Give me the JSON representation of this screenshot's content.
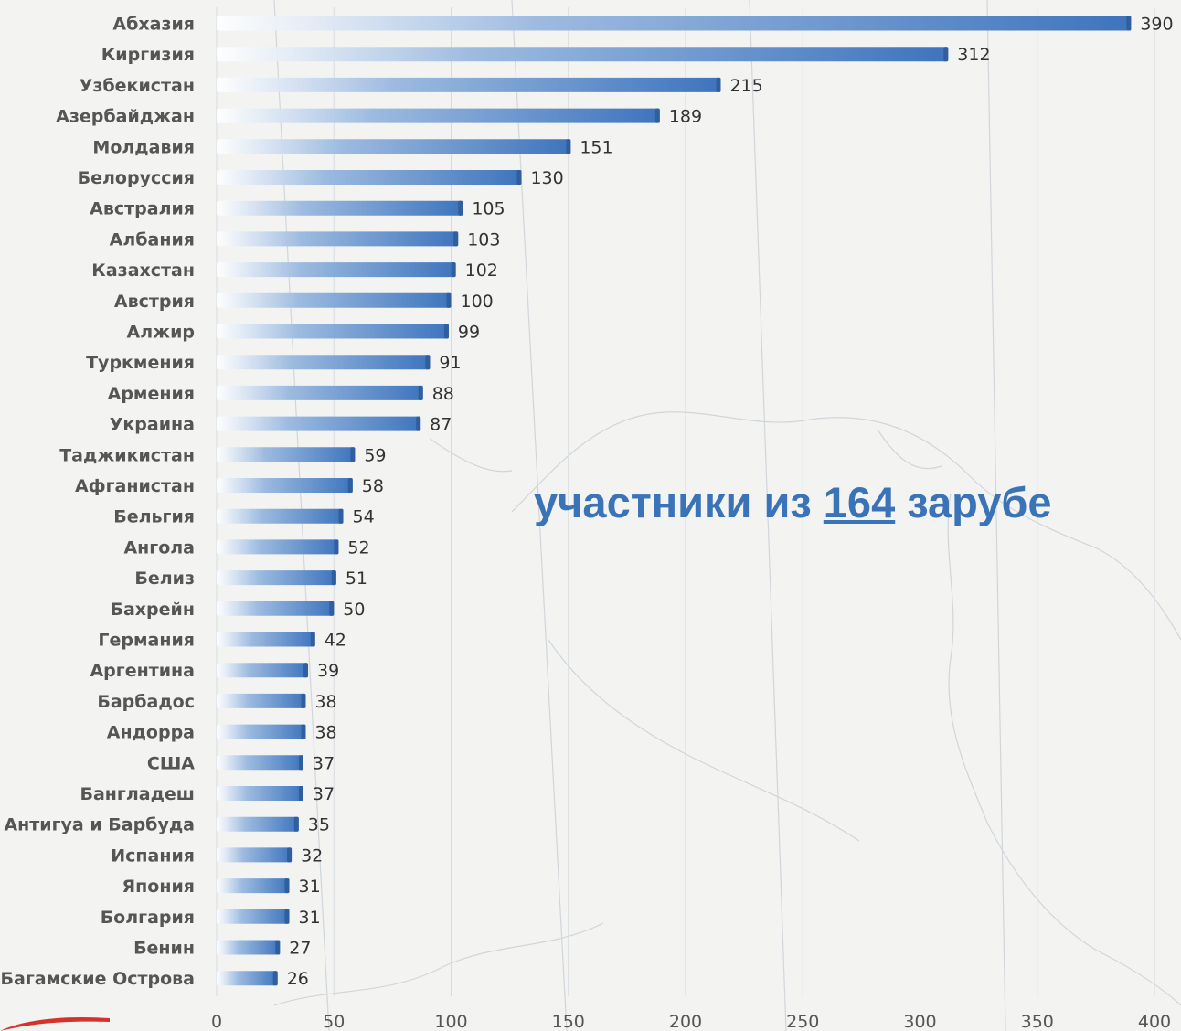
{
  "colors": {
    "bar": "#3e74bd",
    "bar_light": "#ffffff",
    "overlay_text": "#3a73b8",
    "accent_red": "#d6322b"
  },
  "overlay": {
    "prefix": "участники из ",
    "number": "164",
    "suffix": " зарубе"
  },
  "chart_data": {
    "type": "bar",
    "orientation": "horizontal",
    "categories": [
      "Абхазия",
      "Киргизия",
      "Узбекистан",
      "Азербайджан",
      "Молдавия",
      "Белоруссия",
      "Австралия",
      "Албания",
      "Казахстан",
      "Австрия",
      "Алжир",
      "Туркмения",
      "Армения",
      "Украина",
      "Таджикистан",
      "Афганистан",
      "Бельгия",
      "Ангола",
      "Белиз",
      "Бахрейн",
      "Германия",
      "Аргентина",
      "Барбадос",
      "Андорра",
      "США",
      "Бангладеш",
      "Антигуа и Барбуда",
      "Испания",
      "Япония",
      "Болгария",
      "Бенин",
      "Багамские Острова"
    ],
    "values": [
      390,
      312,
      215,
      189,
      151,
      130,
      105,
      103,
      102,
      100,
      99,
      91,
      88,
      87,
      59,
      58,
      54,
      52,
      51,
      50,
      42,
      39,
      38,
      38,
      37,
      37,
      35,
      32,
      31,
      31,
      27,
      26
    ],
    "xlim": [
      0,
      400
    ],
    "xticks": [
      0,
      50,
      100,
      150,
      200,
      250,
      300,
      350,
      400
    ],
    "grid": true
  }
}
